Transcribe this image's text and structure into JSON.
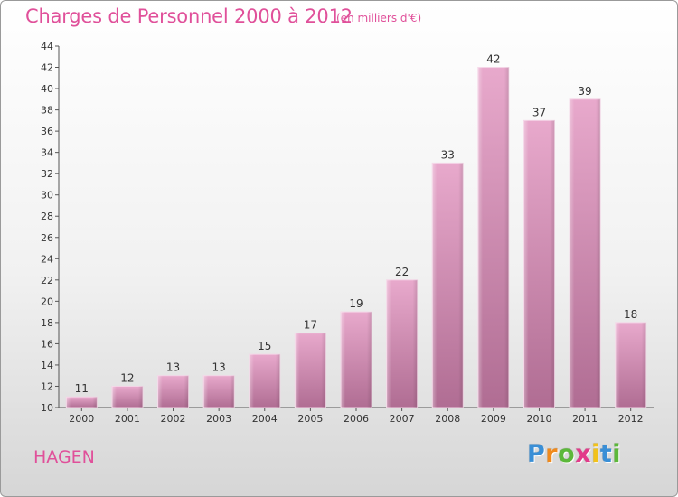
{
  "title": "Charges de Personnel 2000 à 2012",
  "subtitle": "(en milliers d'€)",
  "city": "HAGEN",
  "logo_letters": [
    {
      "ch": "P",
      "color": "#3a8fd6"
    },
    {
      "ch": "r",
      "color": "#f08a1c"
    },
    {
      "ch": "o",
      "color": "#5cb83a"
    },
    {
      "ch": "x",
      "color": "#e23b8a"
    },
    {
      "ch": "i",
      "color": "#f2c21a"
    },
    {
      "ch": "t",
      "color": "#3a8fd6"
    },
    {
      "ch": "i",
      "color": "#5cb83a"
    }
  ],
  "colors": {
    "accent": "#e0509a",
    "bar_light": "#e8a9cc",
    "bar_dark": "#b06d93"
  },
  "chart_data": {
    "type": "bar",
    "categories": [
      "2000",
      "2001",
      "2002",
      "2003",
      "2004",
      "2005",
      "2006",
      "2007",
      "2008",
      "2009",
      "2010",
      "2011",
      "2012"
    ],
    "values": [
      11,
      12,
      13,
      13,
      15,
      17,
      19,
      22,
      33,
      42,
      37,
      39,
      18
    ],
    "title": "Charges de Personnel 2000 à 2012",
    "ylim": [
      10,
      44
    ],
    "yticks": [
      10,
      12,
      14,
      16,
      18,
      20,
      22,
      24,
      26,
      28,
      30,
      32,
      34,
      36,
      38,
      40,
      42,
      44
    ],
    "grid": false,
    "legend": "none"
  }
}
